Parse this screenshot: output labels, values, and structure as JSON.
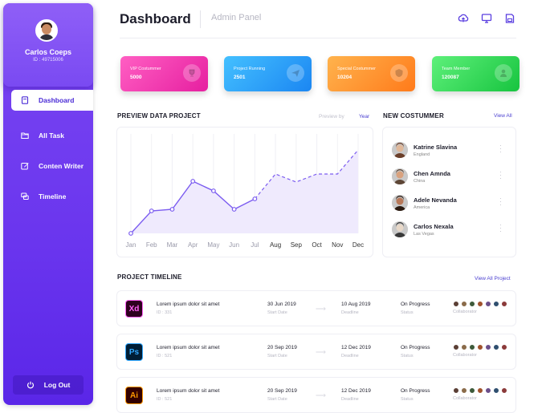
{
  "profile": {
    "name": "Carlos Coeps",
    "id": "ID : 49715006"
  },
  "nav": [
    {
      "label": "Dashboard",
      "icon": "document-icon",
      "active": true
    },
    {
      "label": "All Task",
      "icon": "folder-icon"
    },
    {
      "label": "Conten Writer",
      "icon": "edit-icon"
    },
    {
      "label": "Timeline",
      "icon": "chat-icon"
    }
  ],
  "logout": {
    "label": "Log Out",
    "icon": "power-icon"
  },
  "header": {
    "title": "Dashboard",
    "subtitle": "Admin Panel",
    "icons": [
      "upload-icon",
      "monitor-icon",
      "save-icon"
    ]
  },
  "cards": [
    {
      "label": "VIP Costummer",
      "value": "5000",
      "icon": "trophy-icon",
      "from": "#ff5fc3",
      "to": "#e61fa0"
    },
    {
      "label": "Project Running",
      "value": "2501",
      "icon": "plane-icon",
      "from": "#44c0ff",
      "to": "#1b86f2"
    },
    {
      "label": "Special Costummer",
      "value": "10204",
      "icon": "shield-icon",
      "from": "#ffb34d",
      "to": "#ff7a1a"
    },
    {
      "label": "Team Member",
      "value": "120087",
      "icon": "person-icon",
      "from": "#5ef07a",
      "to": "#17c43f"
    }
  ],
  "preview": {
    "title": "PREVIEW DATA PROJECT",
    "preview_by": "Preview by",
    "year": "Year"
  },
  "chart_data": {
    "type": "line",
    "categories": [
      "Jan",
      "Feb",
      "Mar",
      "Apr",
      "May",
      "Jun",
      "Jul",
      "Aug",
      "Sep",
      "Oct",
      "Nov",
      "Dec"
    ],
    "values": [
      0,
      28,
      30,
      65,
      53,
      30,
      43,
      74,
      64,
      74,
      74,
      104
    ],
    "solid_until_index": 6,
    "ylim": [
      0,
      120
    ],
    "grid": "vertical",
    "color": "#7b5cf0"
  },
  "customers": {
    "title": "NEW COSTUMMER",
    "view_all": "View All",
    "items": [
      {
        "name": "Katrine Slavina",
        "location": "England"
      },
      {
        "name": "Chen Amnda",
        "location": "China"
      },
      {
        "name": "Adele Nevanda",
        "location": "America"
      },
      {
        "name": "Carlos Nexala",
        "location": "Las Vegas"
      }
    ]
  },
  "timeline": {
    "title": "PROJECT TIMELINE",
    "view_all": "View All Project",
    "rows": [
      {
        "app": "Xd",
        "app_color": "#ff61f6",
        "app_bg": "#2e001f",
        "name": "Lorem ipsum dolor sit amet",
        "id": "ID : 331",
        "start": "30 Jun 2019",
        "start_label": "Start Date",
        "deadline": "10 Aug 2019",
        "deadline_label": "Deadline",
        "status": "On Progress",
        "status_label": "Status",
        "collab_label": "Collaborator"
      },
      {
        "app": "Ps",
        "app_color": "#31a8ff",
        "app_bg": "#001e36",
        "name": "Lorem ipsum dolor sit amet",
        "id": "ID : 521",
        "start": "20 Sep 2019",
        "start_label": "Start Date",
        "deadline": "12 Dec 2019",
        "deadline_label": "Deadline",
        "status": "On Progress",
        "status_label": "Status",
        "collab_label": "Collaborator"
      },
      {
        "app": "Ai",
        "app_color": "#ff9a00",
        "app_bg": "#330000",
        "name": "Lorem ipsum dolor sit amet",
        "id": "ID : 521",
        "start": "20 Sep 2019",
        "start_label": "Start Date",
        "deadline": "12 Dec 2019",
        "deadline_label": "Deadline",
        "status": "On Progress",
        "status_label": "Status",
        "collab_label": "Collaborator"
      }
    ]
  }
}
